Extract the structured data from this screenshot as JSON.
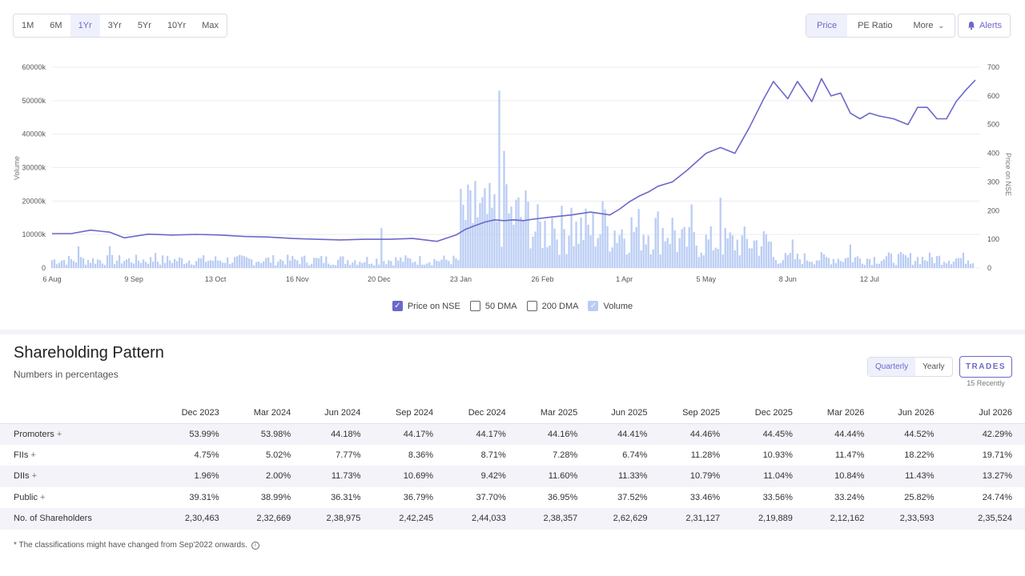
{
  "range_tabs": [
    {
      "label": "1M",
      "active": false
    },
    {
      "label": "6M",
      "active": false
    },
    {
      "label": "1Yr",
      "active": true
    },
    {
      "label": "3Yr",
      "active": false
    },
    {
      "label": "5Yr",
      "active": false
    },
    {
      "label": "10Yr",
      "active": false
    },
    {
      "label": "Max",
      "active": false
    }
  ],
  "view_tabs": {
    "price": "Price",
    "pe": "PE Ratio",
    "more": "More"
  },
  "alerts_label": "Alerts",
  "accent_color": "#6b68c9",
  "volume_color": "#b9ccf4",
  "chart_data": {
    "type": "bar+line",
    "ylabel_left": "Volume",
    "ylabel_right": "Price on NSE",
    "y_left_ticks": [
      "0",
      "10000k",
      "20000k",
      "30000k",
      "40000k",
      "50000k",
      "60000k"
    ],
    "y_left_range": [
      0,
      60000
    ],
    "y_right_ticks": [
      "0",
      "100",
      "200",
      "300",
      "400",
      "500",
      "600",
      "700"
    ],
    "y_right_range": [
      0,
      700
    ],
    "x_ticks": [
      "6 Aug",
      "9 Sep",
      "13 Oct",
      "16 Nov",
      "20 Dec",
      "23 Jan",
      "26 Feb",
      "1 Apr",
      "5 May",
      "8 Jun",
      "12 Jul"
    ],
    "grid": "horizontal",
    "price_series": {
      "name": "Price on NSE",
      "days": [
        0,
        8,
        16,
        24,
        30,
        40,
        50,
        60,
        70,
        80,
        90,
        100,
        110,
        120,
        130,
        140,
        150,
        160,
        168,
        172,
        176,
        180,
        184,
        188,
        192,
        196,
        200,
        208,
        216,
        224,
        232,
        236,
        240,
        244,
        248,
        252,
        258,
        264,
        272,
        278,
        284,
        290,
        296,
        300,
        304,
        306,
        310,
        316,
        320,
        324,
        328,
        332,
        336,
        340,
        344,
        350,
        356,
        360,
        364,
        368,
        372,
        376,
        380,
        384
      ],
      "values": [
        120,
        120,
        132,
        125,
        105,
        118,
        115,
        117,
        115,
        110,
        108,
        103,
        100,
        98,
        100,
        100,
        103,
        93,
        115,
        135,
        148,
        160,
        168,
        165,
        168,
        165,
        170,
        178,
        185,
        195,
        185,
        205,
        230,
        250,
        265,
        285,
        300,
        340,
        400,
        420,
        400,
        490,
        590,
        650,
        610,
        590,
        650,
        580,
        660,
        600,
        610,
        540,
        520,
        540,
        530,
        520,
        500,
        560,
        560,
        520,
        520,
        580,
        620,
        655
      ]
    },
    "volume_series": {
      "name": "Volume",
      "unit": "k",
      "segments": [
        {
          "from_day": 0,
          "to_day": 170,
          "typical": 2500
        },
        {
          "from_day": 170,
          "to_day": 200,
          "typical": 16000
        },
        {
          "from_day": 200,
          "to_day": 260,
          "typical": 12000
        },
        {
          "from_day": 260,
          "to_day": 300,
          "typical": 8000
        },
        {
          "from_day": 300,
          "to_day": 384,
          "typical": 3000
        }
      ],
      "peaks": [
        {
          "day": 11,
          "value": 6500
        },
        {
          "day": 24,
          "value": 6500
        },
        {
          "day": 43,
          "value": 4500
        },
        {
          "day": 137,
          "value": 12000
        },
        {
          "day": 176,
          "value": 26000
        },
        {
          "day": 186,
          "value": 53000
        },
        {
          "day": 188,
          "value": 35000
        },
        {
          "day": 208,
          "value": 15000
        },
        {
          "day": 216,
          "value": 18000
        },
        {
          "day": 229,
          "value": 20000
        },
        {
          "day": 266,
          "value": 19000
        },
        {
          "day": 278,
          "value": 21000
        },
        {
          "day": 308,
          "value": 8500
        },
        {
          "day": 332,
          "value": 7000
        }
      ]
    }
  },
  "legend": [
    {
      "label": "Price on NSE",
      "checked": true,
      "kind": "price"
    },
    {
      "label": "50 DMA",
      "checked": false,
      "kind": "box"
    },
    {
      "label": "200 DMA",
      "checked": false,
      "kind": "box"
    },
    {
      "label": "Volume",
      "checked": true,
      "kind": "volume"
    }
  ],
  "shareholding": {
    "title": "Shareholding Pattern",
    "subtitle": "Numbers in percentages",
    "toggle": {
      "quarterly": "Quarterly",
      "yearly": "Yearly"
    },
    "trades_label": "TRADES",
    "trades_note": "15 Recently",
    "columns": [
      "",
      "Dec 2023",
      "Mar 2024",
      "Jun 2024",
      "Sep 2024",
      "Dec 2024",
      "Mar 2025",
      "Jun 2025",
      "Sep 2025",
      "Dec 2025",
      "Mar 2026",
      "Jun 2026",
      "Jul 2026"
    ],
    "rows": [
      {
        "label": "Promoters",
        "plus": "+",
        "values": [
          "53.99%",
          "53.98%",
          "44.18%",
          "44.17%",
          "44.17%",
          "44.16%",
          "44.41%",
          "44.46%",
          "44.45%",
          "44.44%",
          "44.52%",
          "42.29%"
        ]
      },
      {
        "label": "FIIs",
        "plus": "+",
        "values": [
          "4.75%",
          "5.02%",
          "7.77%",
          "8.36%",
          "8.71%",
          "7.28%",
          "6.74%",
          "11.28%",
          "10.93%",
          "11.47%",
          "18.22%",
          "19.71%"
        ]
      },
      {
        "label": "DIIs",
        "plus": "+",
        "values": [
          "1.96%",
          "2.00%",
          "11.73%",
          "10.69%",
          "9.42%",
          "11.60%",
          "11.33%",
          "10.79%",
          "11.04%",
          "10.84%",
          "11.43%",
          "13.27%"
        ]
      },
      {
        "label": "Public",
        "plus": "+",
        "values": [
          "39.31%",
          "38.99%",
          "36.31%",
          "36.79%",
          "37.70%",
          "36.95%",
          "37.52%",
          "33.46%",
          "33.56%",
          "33.24%",
          "25.82%",
          "24.74%"
        ]
      },
      {
        "label": "No. of Shareholders",
        "plus": "",
        "values": [
          "2,30,463",
          "2,32,669",
          "2,38,975",
          "2,42,245",
          "2,44,033",
          "2,38,357",
          "2,62,629",
          "2,31,127",
          "2,19,889",
          "2,12,162",
          "2,33,593",
          "2,35,524"
        ]
      }
    ],
    "footnote": "* The classifications might have changed from Sep'2022 onwards.",
    "info_icon": "info-icon"
  }
}
